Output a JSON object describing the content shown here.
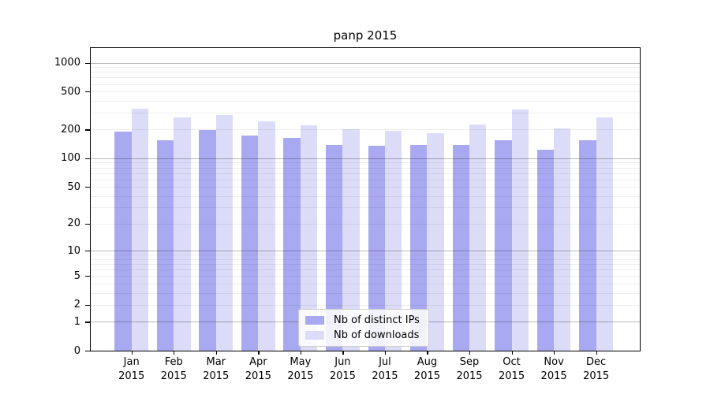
{
  "chart_data": {
    "type": "bar",
    "title": "panp 2015",
    "x_tick_labels": [
      "Jan\n2015",
      "Feb\n2015",
      "Mar\n2015",
      "Apr\n2015",
      "May\n2015",
      "Jun\n2015",
      "Jul\n2015",
      "Aug\n2015",
      "Sep\n2015",
      "Oct\n2015",
      "Nov\n2015",
      "Dec\n2015"
    ],
    "series": [
      {
        "name": "Nb of distinct IPs",
        "color": "#a9a9f2",
        "values": [
          190,
          156,
          198,
          172,
          163,
          139,
          136,
          139,
          139,
          156,
          123,
          156
        ]
      },
      {
        "name": "Nb of downloads",
        "color": "#dcdcf8",
        "values": [
          330,
          270,
          283,
          242,
          224,
          200,
          195,
          182,
          227,
          325,
          204,
          266
        ]
      }
    ],
    "yscale": "log1p",
    "y_ticks": [
      1000,
      500,
      200,
      100,
      50,
      20,
      10,
      5,
      2,
      1,
      0
    ],
    "ylim": [
      0,
      1421
    ],
    "grid": "horizontal, minor every 1-2-5 step, major at decades",
    "legend_position": "lower-center",
    "axis_color": "#000000",
    "major_grid_color": "#b0b0b0",
    "minor_grid_color": "#ececec"
  }
}
